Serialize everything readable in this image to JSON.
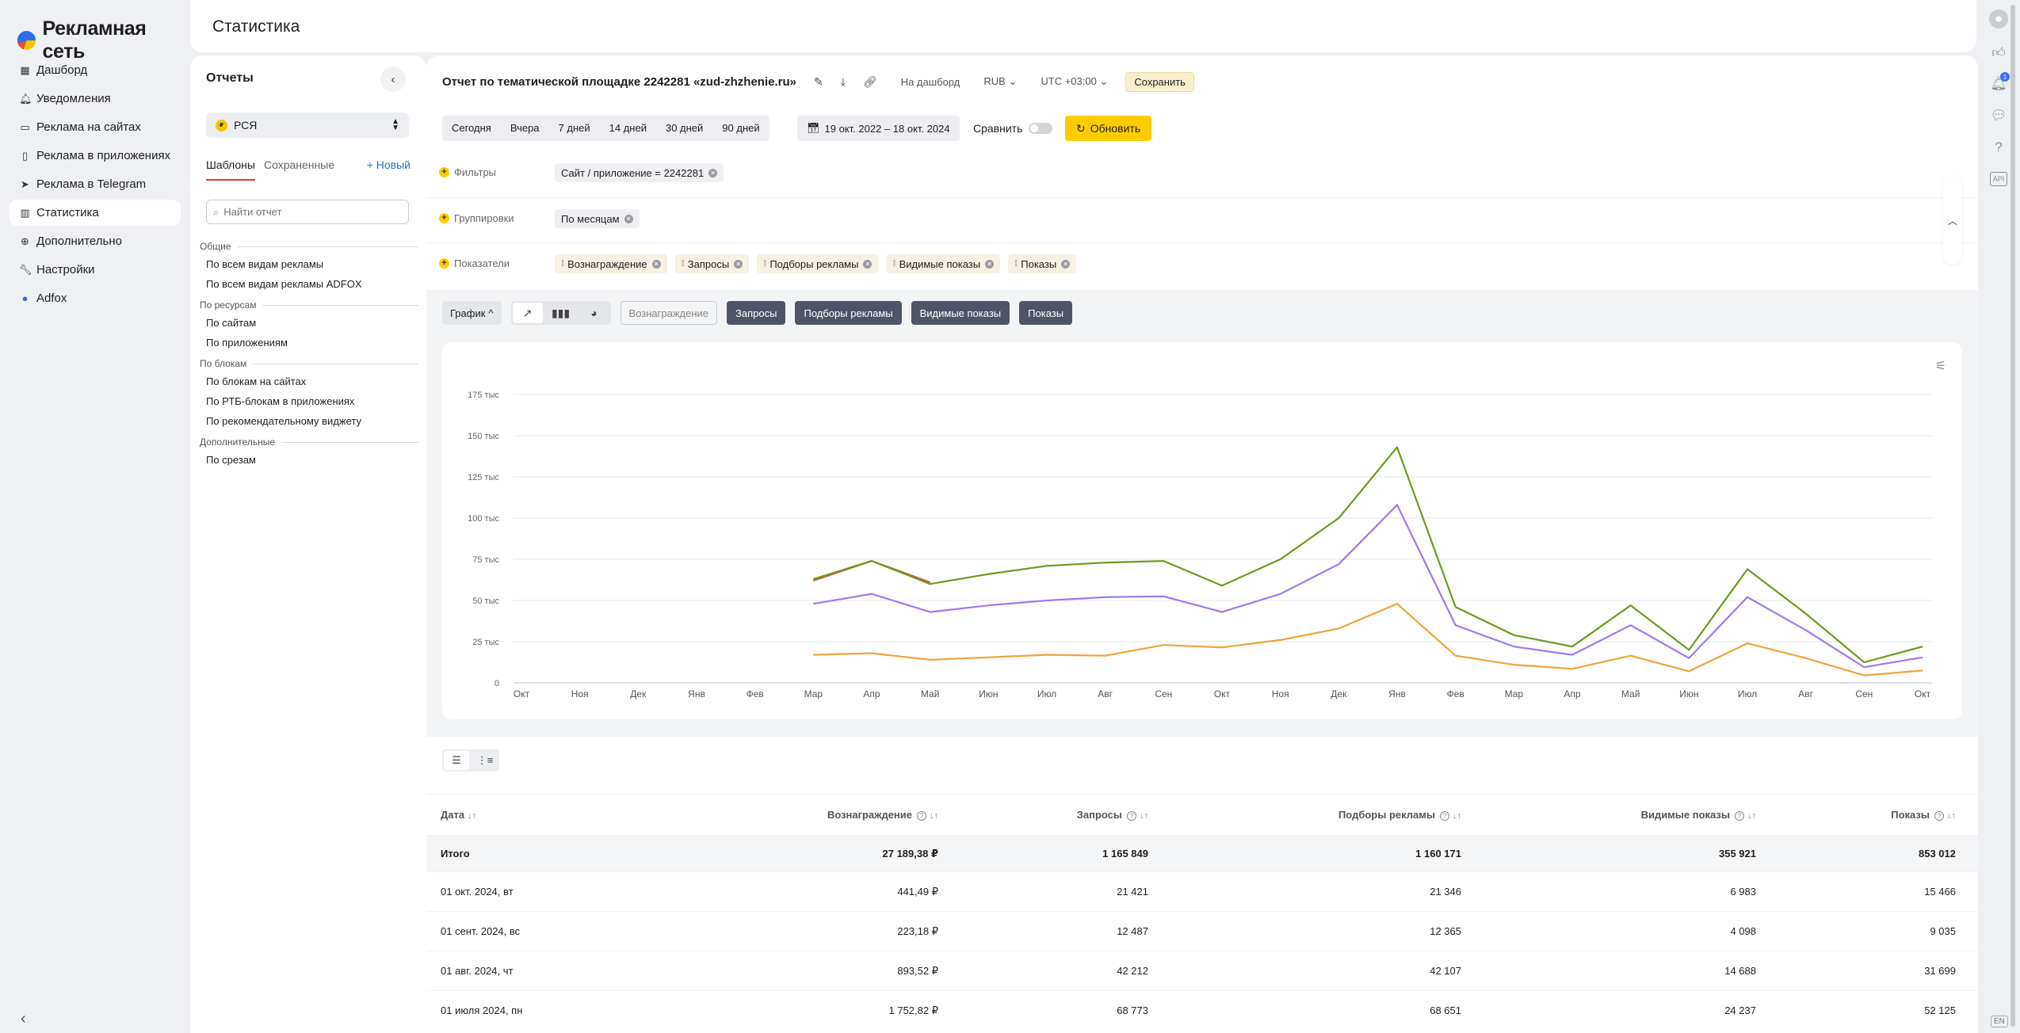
{
  "brand": {
    "logo_text": "Рекламная сеть"
  },
  "nav": {
    "items": [
      {
        "label": "Дашборд",
        "icon": "grid-icon"
      },
      {
        "label": "Уведомления",
        "icon": "bell-icon"
      },
      {
        "label": "Реклама на сайтах",
        "icon": "monitor-icon"
      },
      {
        "label": "Реклама в приложениях",
        "icon": "phone-icon"
      },
      {
        "label": "Реклама в Telegram",
        "icon": "telegram-icon"
      },
      {
        "label": "Статистика",
        "icon": "bar-chart-icon",
        "active": true
      },
      {
        "label": "Дополнительно",
        "icon": "plus-circle-icon"
      },
      {
        "label": "Настройки",
        "icon": "wrench-icon"
      },
      {
        "label": "Adfox",
        "icon": "adfox-icon"
      }
    ]
  },
  "header": {
    "title": "Статистика"
  },
  "reports": {
    "title": "Отчеты",
    "product": "РСЯ",
    "tabs": [
      "Шаблоны",
      "Сохраненные"
    ],
    "new_label": "+ Новый",
    "search_placeholder": "Найти отчет",
    "groups": [
      {
        "title": "Общие",
        "items": [
          "По всем видам рекламы",
          "По всем видам рекламы ADFOX"
        ]
      },
      {
        "title": "По ресурсам",
        "items": [
          "По сайтам",
          "По приложениям"
        ]
      },
      {
        "title": "По блокам",
        "items": [
          "По блокам на сайтах",
          "По РТБ-блокам в приложениях",
          "По рекомендательному виджету"
        ]
      },
      {
        "title": "Дополнительные",
        "items": [
          "По срезам"
        ]
      }
    ]
  },
  "report": {
    "title": "Отчет по тематической площадке 2242281 «zud-zhzhenie.ru»",
    "dashboard_link": "На дашборд",
    "currency": "RUB",
    "timezone": "UTC +03:00",
    "save_label": "Сохранить",
    "periods": [
      "Сегодня",
      "Вчера",
      "7 дней",
      "14 дней",
      "30 дней",
      "90 дней"
    ],
    "date_range": "19 окт. 2022 – 18 окт. 2024",
    "compare_label": "Сравнить",
    "refresh_label": "Обновить"
  },
  "filters": {
    "filters_label": "Фильтры",
    "filter_chips": [
      "Сайт / приложение = 2242281"
    ],
    "groupings_label": "Группировки",
    "grouping_chips": [
      "По месяцам"
    ],
    "metrics_label": "Показатели",
    "metric_chips": [
      "Вознаграждение",
      "Запросы",
      "Подборы рекламы",
      "Видимые показы",
      "Показы"
    ]
  },
  "chart_toolbar": {
    "graph_label": "График",
    "metric_buttons": [
      {
        "label": "Вознаграждение",
        "active": false
      },
      {
        "label": "Запросы",
        "active": true
      },
      {
        "label": "Подборы рекламы",
        "active": true
      },
      {
        "label": "Видимые показы",
        "active": true
      },
      {
        "label": "Показы",
        "active": true
      }
    ]
  },
  "chart_data": {
    "type": "line",
    "x": [
      "Окт",
      "Ноя",
      "Дек",
      "Янв",
      "Фев",
      "Мар",
      "Апр",
      "Май",
      "Июн",
      "Июл",
      "Авг",
      "Сен",
      "Окт",
      "Ноя",
      "Дек",
      "Янв",
      "Фев",
      "Мар",
      "Апр",
      "Май",
      "Июн",
      "Июл",
      "Авг",
      "Сен",
      "Окт"
    ],
    "y_ticks": [
      "0",
      "25 тыс",
      "50 тыс",
      "75 тыс",
      "100 тыс",
      "125 тыс",
      "150 тыс",
      "175 тыс"
    ],
    "ylim": [
      0,
      175000
    ],
    "grid": true,
    "series": [
      {
        "color": "#d9534f",
        "values": [
          null,
          null,
          null,
          null,
          null,
          62000,
          74000,
          61000,
          null,
          null,
          null,
          null,
          null,
          null,
          null,
          null,
          null,
          null,
          null,
          null,
          null,
          null,
          null,
          null,
          null
        ]
      },
      {
        "color": "#6d9a1e",
        "values": [
          null,
          null,
          null,
          null,
          null,
          63000,
          74000,
          60000,
          66000,
          71000,
          73000,
          74000,
          59000,
          75000,
          100000,
          143000,
          46000,
          29000,
          22000,
          47000,
          20000,
          69000,
          42000,
          12500,
          22000
        ]
      },
      {
        "color": "#a078f0",
        "values": [
          null,
          null,
          null,
          null,
          null,
          48000,
          54000,
          43000,
          47000,
          50000,
          52000,
          52500,
          43000,
          54000,
          72000,
          108000,
          35000,
          22000,
          17000,
          35000,
          15000,
          52000,
          32000,
          9500,
          15500
        ]
      },
      {
        "color": "#f0a23c",
        "values": [
          null,
          null,
          null,
          null,
          null,
          17000,
          18000,
          14000,
          15500,
          17000,
          16500,
          23000,
          21500,
          26000,
          33000,
          48000,
          16500,
          11000,
          8500,
          16500,
          7000,
          24000,
          15000,
          4500,
          7500
        ]
      }
    ]
  },
  "table": {
    "columns": [
      "Дата",
      "Вознаграждение",
      "Запросы",
      "Подборы рекламы",
      "Видимые показы",
      "Показы"
    ],
    "total": [
      "Итого",
      "27 189,38 ₽",
      "1 165 849",
      "1 160 171",
      "355 921",
      "853 012"
    ],
    "rows": [
      [
        "01 окт. 2024, вт",
        "441,49 ₽",
        "21 421",
        "21 346",
        "6 983",
        "15 466"
      ],
      [
        "01 сент. 2024, вс",
        "223,18 ₽",
        "12 487",
        "12 365",
        "4 098",
        "9 035"
      ],
      [
        "01 авг. 2024, чт",
        "893,52 ₽",
        "42 212",
        "42 107",
        "14 688",
        "31 699"
      ],
      [
        "01 июля 2024, пн",
        "1 752,82 ₽",
        "68 773",
        "68 651",
        "24 237",
        "52 125"
      ]
    ]
  },
  "rightrail": {
    "notifications_count": "1",
    "api_label": "API",
    "lang": "EN"
  }
}
